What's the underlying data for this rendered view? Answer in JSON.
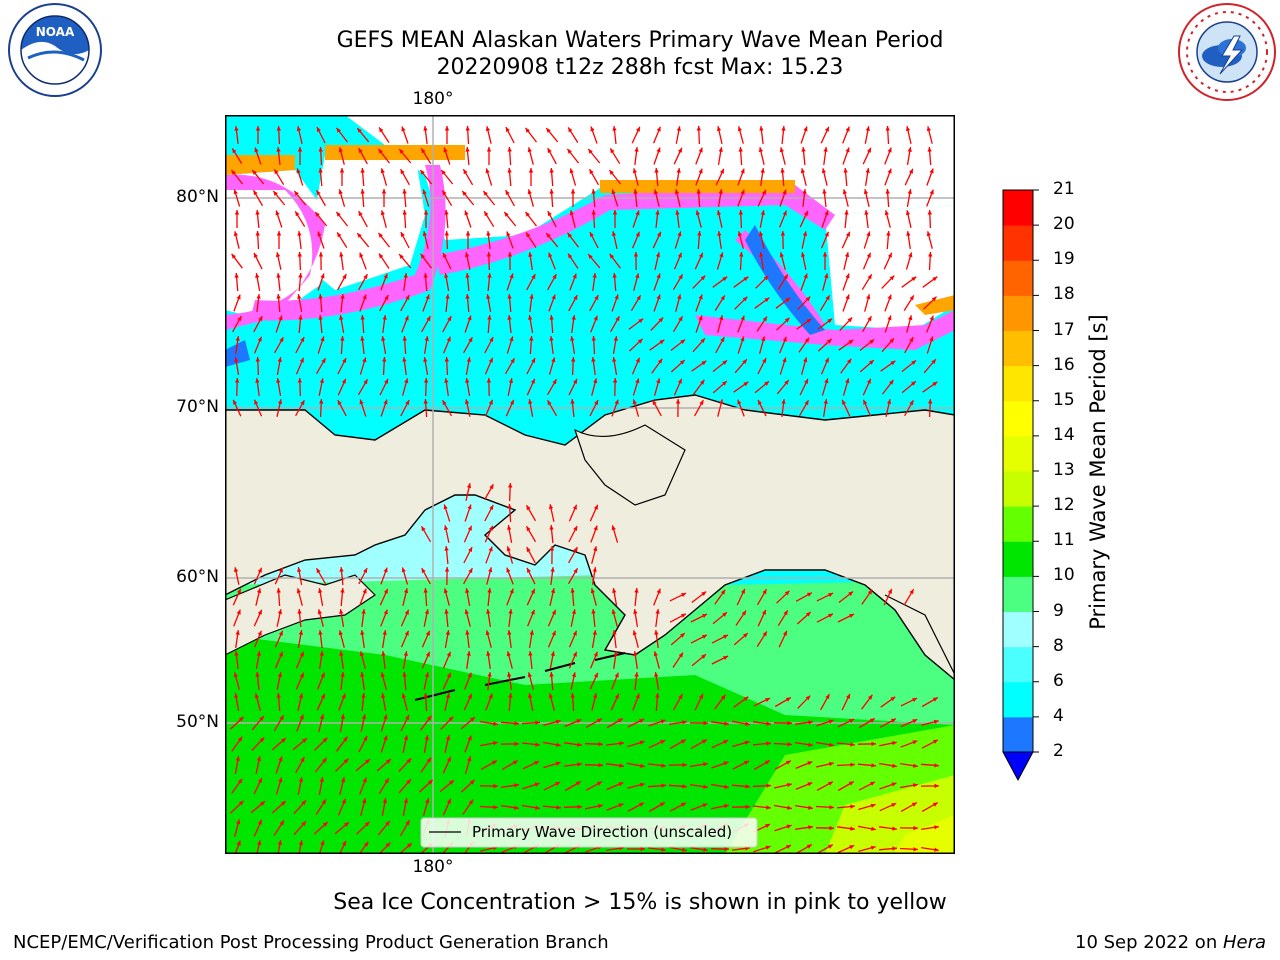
{
  "header": {
    "title_line1": "GEFS MEAN Alaskan Waters Primary Wave Mean Period",
    "title_line2": "20220908 t12z 288h fcst   Max: 15.23"
  },
  "map": {
    "lon_labels": [
      "180°",
      "180°"
    ],
    "lat_labels": [
      "80°N",
      "70°N",
      "60°N",
      "50°N"
    ],
    "legend_label": "Primary Wave Direction (unscaled)"
  },
  "colorbar": {
    "label": "Primary Wave Mean Period [s]",
    "ticks": [
      "2",
      "4",
      "6",
      "8",
      "9",
      "10",
      "11",
      "12",
      "13",
      "14",
      "15",
      "16",
      "17",
      "18",
      "19",
      "20",
      "21"
    ],
    "colors": [
      "#0000ff",
      "#1e78ff",
      "#00ffff",
      "#4cffff",
      "#a0ffff",
      "#4cff80",
      "#00e600",
      "#64ff00",
      "#c8ff00",
      "#e6ff00",
      "#ffff00",
      "#ffe600",
      "#ffbe00",
      "#ff9600",
      "#ff6400",
      "#ff3200",
      "#ff0000"
    ]
  },
  "note": "Sea Ice Concentration > 15% is shown in pink to yellow",
  "footer": {
    "left": "NCEP/EMC/Verification Post Processing Product Generation Branch",
    "date": "10 Sep 2022 on ",
    "host": "Hera"
  },
  "logos": {
    "noaa_text": "NOAA",
    "nws_text": "NATIONAL WEATHER SERVICE"
  }
}
